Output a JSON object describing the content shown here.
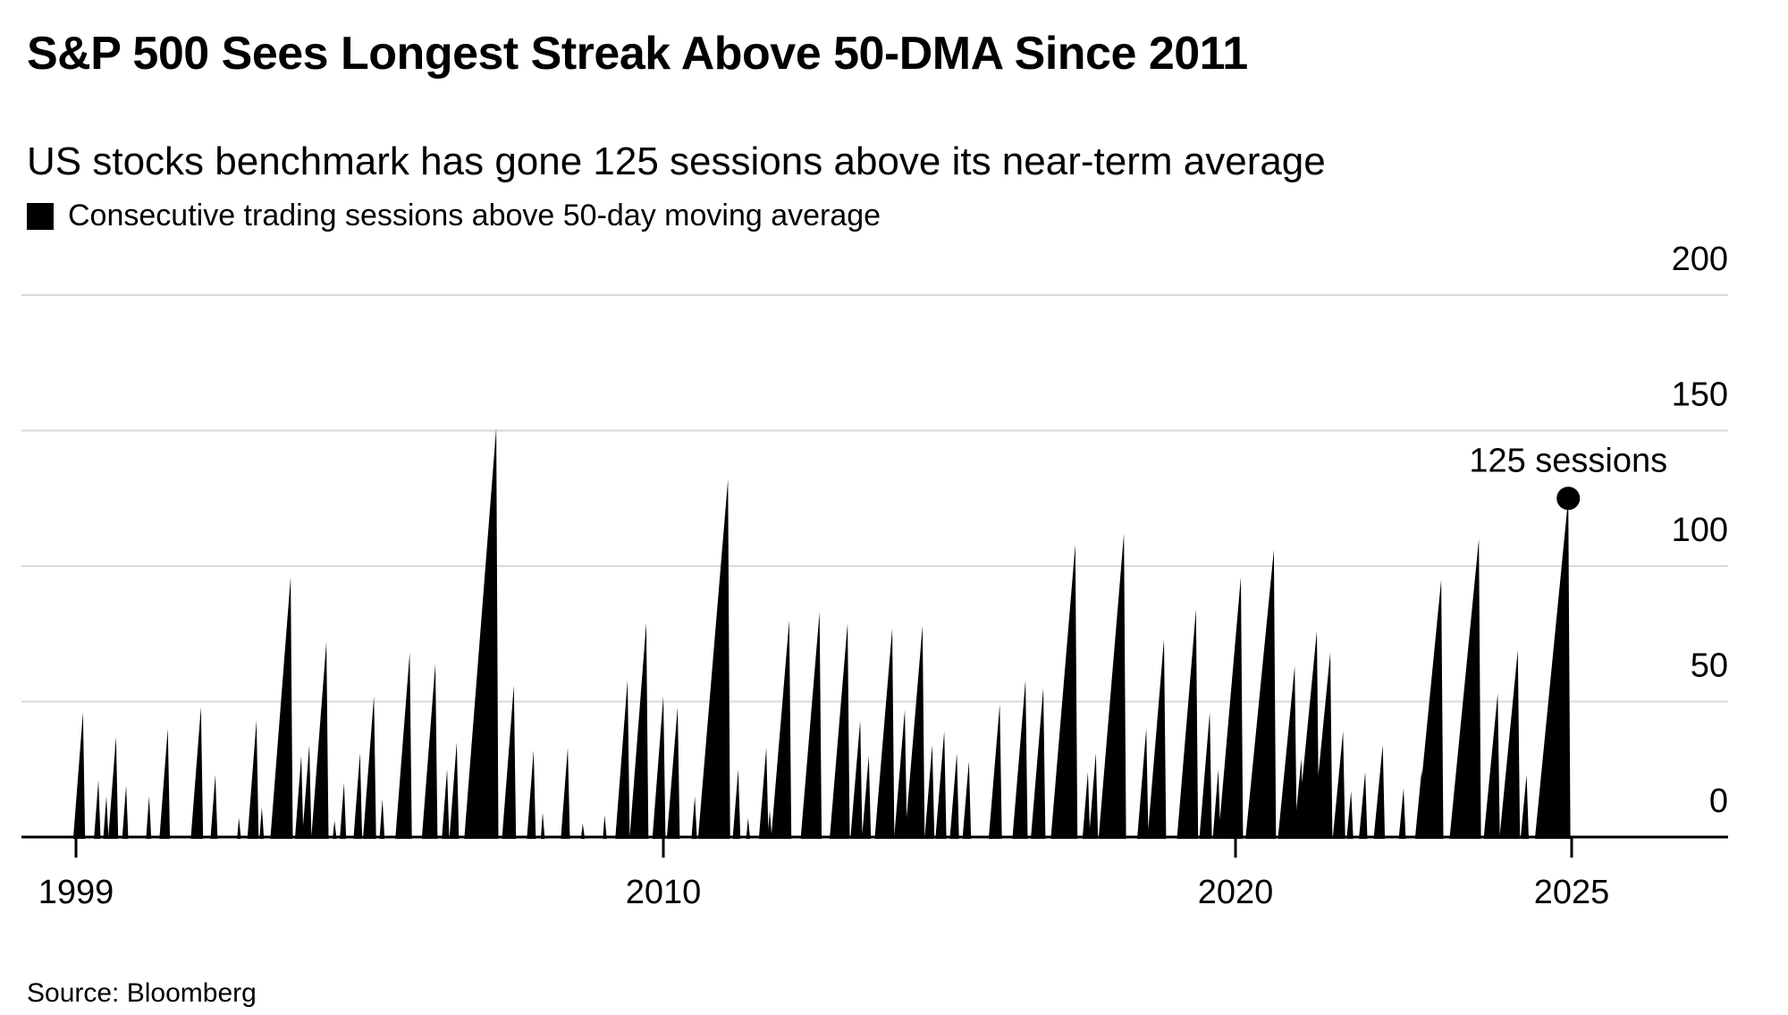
{
  "header": {
    "title": "S&P 500 Sees Longest Streak Above 50-DMA Since 2011",
    "subtitle": "US stocks benchmark has gone 125 sessions above its near-term average",
    "legend": {
      "swatch_color": "#000000",
      "label": "Consecutive trading sessions above 50-day moving average"
    }
  },
  "footer": {
    "source": "Source: Bloomberg"
  },
  "colors": {
    "series": "#000000",
    "grid": "#d8d8d8",
    "axis": "#000000",
    "text": "#000000",
    "background": "#ffffff"
  },
  "chart_data": {
    "type": "area",
    "title": "S&P 500 Sees Longest Streak Above 50-DMA Since 2011",
    "subtitle": "US stocks benchmark has gone 125 sessions above its near-term average",
    "series_name": "Consecutive trading sessions above 50-day moving average",
    "units": "sessions",
    "color": "#000000",
    "grid": "horizontal",
    "x_axis": {
      "tick_years": [
        1999,
        2010,
        2020,
        2025
      ]
    },
    "y_axis": {
      "ticks": [
        0,
        50,
        100,
        150,
        200
      ],
      "range": [
        0,
        200
      ],
      "side": "right"
    },
    "annotation": {
      "label": "125 sessions",
      "year": 2024.95,
      "value": 125
    },
    "streaks_format": [
      "approx_end_year",
      "peak_consecutive_sessions"
    ],
    "streaks": [
      [
        1999.13,
        46
      ],
      [
        1999.42,
        21
      ],
      [
        1999.57,
        15
      ],
      [
        1999.75,
        37
      ],
      [
        1999.94,
        19
      ],
      [
        2000.37,
        15
      ],
      [
        2000.72,
        40
      ],
      [
        2001.34,
        48
      ],
      [
        2001.61,
        23
      ],
      [
        2002.05,
        7
      ],
      [
        2002.38,
        43
      ],
      [
        2002.48,
        11
      ],
      [
        2003.02,
        96
      ],
      [
        2003.22,
        30
      ],
      [
        2003.37,
        34
      ],
      [
        2003.69,
        72
      ],
      [
        2003.84,
        6
      ],
      [
        2004.02,
        20
      ],
      [
        2004.32,
        31
      ],
      [
        2004.58,
        52
      ],
      [
        2004.74,
        14
      ],
      [
        2005.25,
        68
      ],
      [
        2005.56,
        12
      ],
      [
        2005.73,
        64
      ],
      [
        2005.95,
        25
      ],
      [
        2006.13,
        35
      ],
      [
        2006.87,
        151
      ],
      [
        2007.2,
        56
      ],
      [
        2007.57,
        32
      ],
      [
        2007.74,
        9
      ],
      [
        2008.21,
        33
      ],
      [
        2008.49,
        5
      ],
      [
        2008.9,
        8
      ],
      [
        2009.33,
        58
      ],
      [
        2009.68,
        79
      ],
      [
        2010.0,
        52
      ],
      [
        2010.25,
        48
      ],
      [
        2010.55,
        15
      ],
      [
        2011.13,
        132
      ],
      [
        2011.31,
        25
      ],
      [
        2011.48,
        7
      ],
      [
        2011.8,
        33
      ],
      [
        2011.86,
        10
      ],
      [
        2012.2,
        80
      ],
      [
        2012.73,
        83
      ],
      [
        2013.22,
        79
      ],
      [
        2013.44,
        43
      ],
      [
        2013.59,
        30
      ],
      [
        2013.77,
        18
      ],
      [
        2014.0,
        77
      ],
      [
        2014.22,
        47
      ],
      [
        2014.53,
        78
      ],
      [
        2014.7,
        34
      ],
      [
        2014.91,
        39
      ],
      [
        2015.13,
        31
      ],
      [
        2015.34,
        28
      ],
      [
        2015.88,
        49
      ],
      [
        2016.33,
        58
      ],
      [
        2016.64,
        55
      ],
      [
        2017.2,
        108
      ],
      [
        2017.42,
        24
      ],
      [
        2017.56,
        31
      ],
      [
        2018.05,
        112
      ],
      [
        2018.44,
        40
      ],
      [
        2018.75,
        73
      ],
      [
        2019.31,
        84
      ],
      [
        2019.55,
        46
      ],
      [
        2019.7,
        25
      ],
      [
        2020.08,
        96
      ],
      [
        2020.57,
        106
      ],
      [
        2020.88,
        63
      ],
      [
        2020.98,
        29
      ],
      [
        2021.21,
        76
      ],
      [
        2021.41,
        68
      ],
      [
        2021.6,
        39
      ],
      [
        2021.72,
        17
      ],
      [
        2021.93,
        24
      ],
      [
        2022.19,
        34
      ],
      [
        2022.5,
        18
      ],
      [
        2022.77,
        25
      ],
      [
        2023.06,
        95
      ],
      [
        2023.62,
        110
      ],
      [
        2023.9,
        53
      ],
      [
        2024.2,
        69
      ],
      [
        2024.33,
        23
      ],
      [
        2024.95,
        125
      ]
    ]
  }
}
